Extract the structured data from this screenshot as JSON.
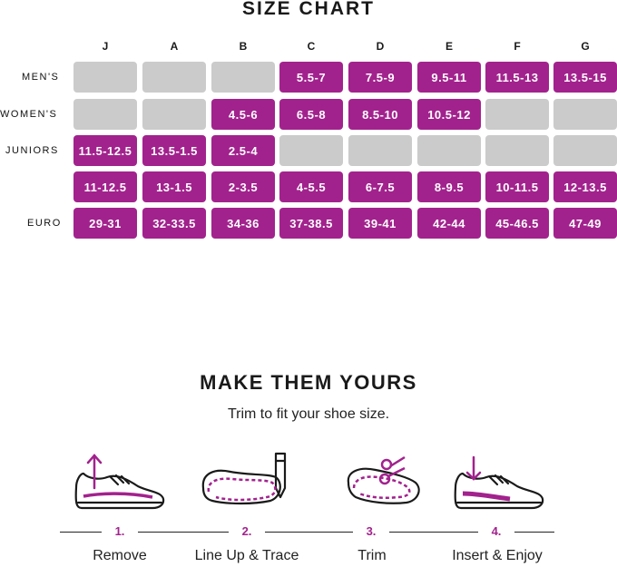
{
  "size_chart": {
    "title": "SIZE CHART",
    "columns": [
      "J",
      "A",
      "B",
      "C",
      "D",
      "E",
      "F",
      "G"
    ],
    "rows": [
      {
        "label": "MEN'S",
        "cells": [
          "",
          "",
          "",
          "5.5-7",
          "7.5-9",
          "9.5-11",
          "11.5-13",
          "13.5-15"
        ]
      },
      {
        "label": "WOMEN'S",
        "cells": [
          "",
          "",
          "4.5-6",
          "6.5-8",
          "8.5-10",
          "10.5-12",
          "",
          ""
        ]
      },
      {
        "label": "JUNIORS",
        "cells": [
          "11.5-12.5",
          "13.5-1.5",
          "2.5-4",
          "",
          "",
          "",
          "",
          ""
        ]
      },
      {
        "label": "",
        "cells": [
          "11-12.5",
          "13-1.5",
          "2-3.5",
          "4-5.5",
          "6-7.5",
          "8-9.5",
          "10-11.5",
          "12-13.5"
        ]
      },
      {
        "label": "EURO",
        "cells": [
          "29-31",
          "32-33.5",
          "34-36",
          "37-38.5",
          "39-41",
          "42-44",
          "45-46.5",
          "47-49"
        ]
      }
    ]
  },
  "make_yours": {
    "title": "MAKE THEM YOURS",
    "subtitle": "Trim to fit your shoe size.",
    "steps": [
      {
        "number": "1.",
        "label": "Remove",
        "icon": "shoe-remove-insole-icon"
      },
      {
        "number": "2.",
        "label": "Line Up & Trace",
        "icon": "insole-trace-pen-icon"
      },
      {
        "number": "3.",
        "label": "Trim",
        "icon": "insole-scissors-icon"
      },
      {
        "number": "4.",
        "label": "Insert & Enjoy",
        "icon": "shoe-insert-insole-icon"
      }
    ]
  },
  "colors": {
    "accent": "#a2228d",
    "empty_cell": "#cbcbcb",
    "text": "#1a1a1a"
  }
}
